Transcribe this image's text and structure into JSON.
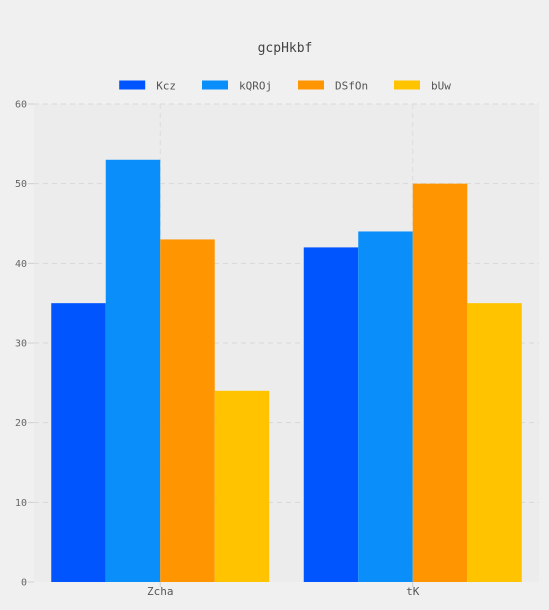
{
  "chart_data": {
    "type": "bar",
    "title": "gcpHkbf",
    "xlabel": "",
    "ylabel": "",
    "categories": [
      "Zcha",
      "tK"
    ],
    "series": [
      {
        "name": "Kcz",
        "color": "#0055ff",
        "values": [
          35,
          42
        ]
      },
      {
        "name": "kQROj",
        "color": "#0a8ffa",
        "values": [
          53,
          44
        ]
      },
      {
        "name": "DSfOn",
        "color": "#ff9500",
        "values": [
          43,
          50
        ]
      },
      {
        "name": "bUw",
        "color": "#ffc300",
        "values": [
          24,
          35
        ]
      }
    ],
    "ylim": [
      0,
      60
    ],
    "yticks": [
      "0",
      "10",
      "20",
      "30",
      "40",
      "50",
      "60"
    ],
    "grid": true,
    "legend_position": "top"
  }
}
